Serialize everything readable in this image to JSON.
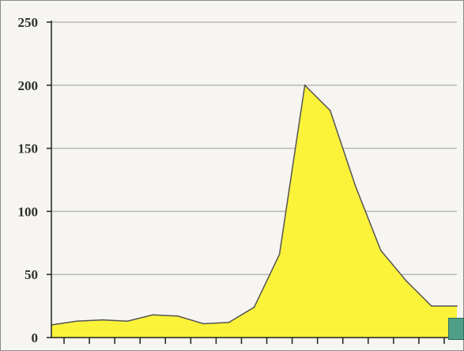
{
  "chart_data": {
    "type": "area",
    "title": "",
    "xlabel": "",
    "ylabel": "",
    "ylim": [
      0,
      250
    ],
    "yticks": [
      "0",
      "50",
      "100",
      "150",
      "200",
      "250"
    ],
    "x": [
      0,
      1,
      2,
      3,
      4,
      5,
      6,
      7,
      8,
      9,
      10,
      11,
      12,
      13,
      14,
      15,
      16
    ],
    "values": [
      10,
      13,
      14,
      13,
      18,
      17,
      11,
      12,
      24,
      66,
      200,
      180,
      120,
      69,
      45,
      25,
      25
    ],
    "colors": {
      "fill": "#fbf23a",
      "line": "#555555",
      "grid": "#b8b8b8",
      "axis": "#222222"
    },
    "grid": true,
    "legend": "none"
  },
  "corner_icon": "resize-handle-icon"
}
